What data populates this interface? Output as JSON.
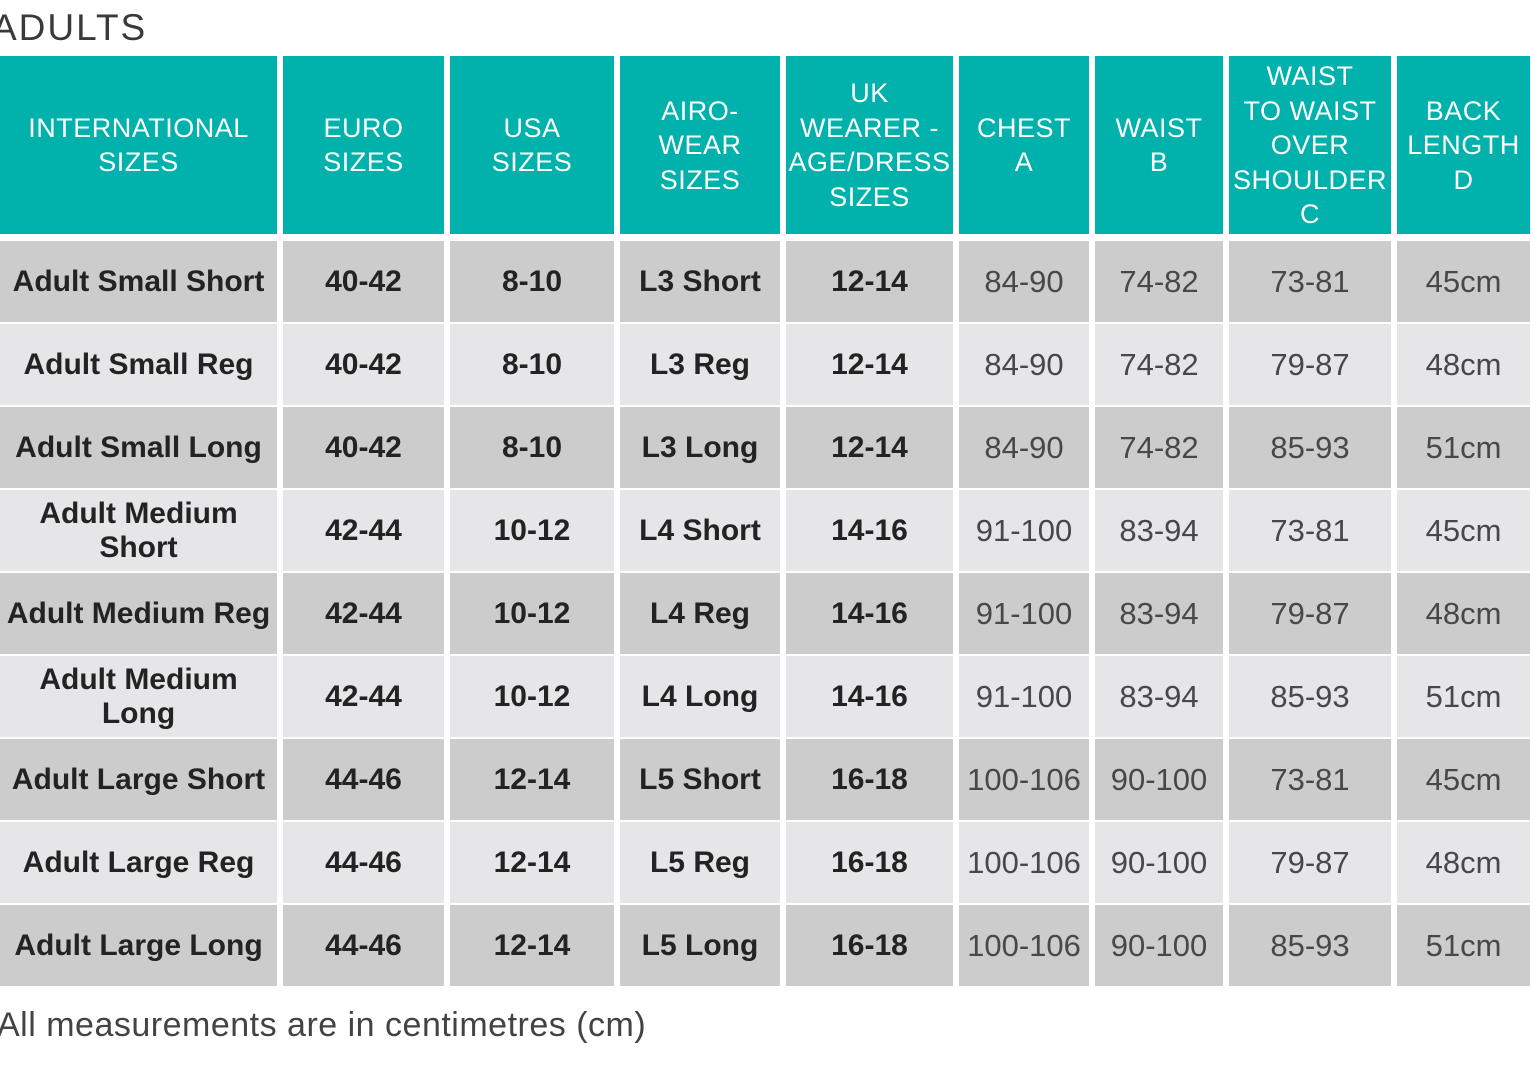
{
  "title": "ADULTS",
  "footnote": "All measurements are in centimetres (cm)",
  "colors": {
    "header_bg": "#00b1ac",
    "header_text": "#ffffff",
    "row_dark": "#cccccc",
    "row_light": "#e6e6e8",
    "bold_text": "#232323",
    "light_text": "#48484a"
  },
  "chart_data": {
    "type": "table",
    "title": "ADULTS",
    "columns": [
      "INTERNATIONAL SIZES",
      "EURO SIZES",
      "USA SIZES",
      "AIRO-WEAR SIZES",
      "UK WEARER - AGE/DRESS SIZES",
      "CHEST A",
      "WAIST B",
      "WAIST TO WAIST OVER SHOULDER C",
      "BACK LENGTH D"
    ],
    "column_lines": [
      "INTERNATIONAL\nSIZES",
      "EURO\nSIZES",
      "USA\nSIZES",
      "AIRO-WEAR\nSIZES",
      "UK\nWEARER -\nAGE/DRESS\nSIZES",
      "CHEST\nA",
      "WAIST\nB",
      "WAIST\nTO WAIST\nOVER\nSHOULDER\nC",
      "BACK\nLENGTH\nD"
    ],
    "bold_column_count": 5,
    "rows": [
      [
        "Adult Small Short",
        "40-42",
        "8-10",
        "L3 Short",
        "12-14",
        "84-90",
        "74-82",
        "73-81",
        "45cm"
      ],
      [
        "Adult Small Reg",
        "40-42",
        "8-10",
        "L3 Reg",
        "12-14",
        "84-90",
        "74-82",
        "79-87",
        "48cm"
      ],
      [
        "Adult Small Long",
        "40-42",
        "8-10",
        "L3 Long",
        "12-14",
        "84-90",
        "74-82",
        "85-93",
        "51cm"
      ],
      [
        "Adult Medium Short",
        "42-44",
        "10-12",
        "L4 Short",
        "14-16",
        "91-100",
        "83-94",
        "73-81",
        "45cm"
      ],
      [
        "Adult Medium Reg",
        "42-44",
        "10-12",
        "L4 Reg",
        "14-16",
        "91-100",
        "83-94",
        "79-87",
        "48cm"
      ],
      [
        "Adult Medium Long",
        "42-44",
        "10-12",
        "L4 Long",
        "14-16",
        "91-100",
        "83-94",
        "85-93",
        "51cm"
      ],
      [
        "Adult Large Short",
        "44-46",
        "12-14",
        "L5 Short",
        "16-18",
        "100-106",
        "90-100",
        "73-81",
        "45cm"
      ],
      [
        "Adult Large Reg",
        "44-46",
        "12-14",
        "L5 Reg",
        "16-18",
        "100-106",
        "90-100",
        "79-87",
        "48cm"
      ],
      [
        "Adult Large Long",
        "44-46",
        "12-14",
        "L5 Long",
        "16-18",
        "100-106",
        "90-100",
        "85-93",
        "51cm"
      ]
    ],
    "footnote": "All measurements are in centimetres (cm)"
  }
}
